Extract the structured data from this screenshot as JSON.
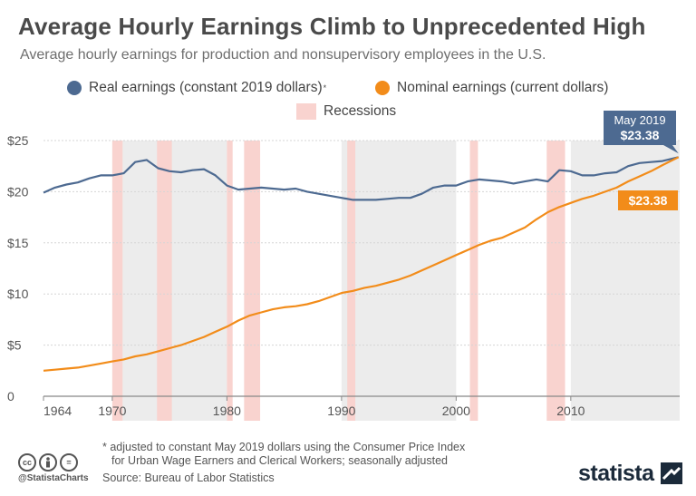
{
  "header": {
    "title": "Average Hourly Earnings Climb to Unprecedented High",
    "subtitle": "Average hourly earnings for production and nonsupervisory employees in the U.S."
  },
  "legend": {
    "real_label": "Real earnings (constant 2019 dollars)",
    "real_marker": "*",
    "nominal_label": "Nominal earnings (current dollars)",
    "recessions_label": "Recessions"
  },
  "footer": {
    "footnote_line1": "* adjusted to constant May 2019 dollars using the Consumer Price Index",
    "footnote_line2": "for Urban Wage Earners and Clerical Workers; seasonally adjusted",
    "source": "Source: Bureau of Labor Statistics",
    "handle": "@StatistaCharts",
    "brand": "statista"
  },
  "colors": {
    "real": "#4d6a91",
    "nominal": "#f28c1a",
    "recession": "#f9d3cf",
    "band": "#ececec",
    "grid": "#d5d5d5",
    "callout_real": "#4d6a91",
    "callout_nominal": "#f28c1a"
  },
  "icons": [
    "cc-icon",
    "attribution-icon",
    "no-derivatives-icon",
    "statista-logo-icon"
  ],
  "chart_data": {
    "type": "line",
    "ylim": [
      0,
      25
    ],
    "yticks": [
      0,
      5,
      10,
      15,
      20,
      25
    ],
    "ytick_labels": [
      "0",
      "$5",
      "$10",
      "$15",
      "$20",
      "$25"
    ],
    "xlim": [
      1964,
      2019.5
    ],
    "xticks": [
      1964,
      1970,
      1980,
      1990,
      2000,
      2010
    ],
    "xtick_labels": [
      "1964",
      "1970",
      "1980",
      "1990",
      "2000",
      "2010"
    ],
    "decade_bands": [
      [
        1970,
        1980
      ],
      [
        1990,
        2000
      ],
      [
        2010,
        2019.5
      ]
    ],
    "recessions": [
      [
        1970.0,
        1970.9
      ],
      [
        1973.9,
        1975.2
      ],
      [
        1980.0,
        1980.5
      ],
      [
        1981.5,
        1982.9
      ],
      [
        1990.5,
        1991.2
      ],
      [
        2001.2,
        2001.9
      ],
      [
        2007.9,
        2009.5
      ]
    ],
    "series": [
      {
        "name": "Real earnings (constant 2019 dollars)",
        "points": [
          [
            1964,
            19.9
          ],
          [
            1965,
            20.4
          ],
          [
            1966,
            20.7
          ],
          [
            1967,
            20.9
          ],
          [
            1968,
            21.3
          ],
          [
            1969,
            21.6
          ],
          [
            1970,
            21.6
          ],
          [
            1971,
            21.8
          ],
          [
            1972,
            22.9
          ],
          [
            1973,
            23.1
          ],
          [
            1974,
            22.3
          ],
          [
            1975,
            22.0
          ],
          [
            1976,
            21.9
          ],
          [
            1977,
            22.1
          ],
          [
            1978,
            22.2
          ],
          [
            1979,
            21.6
          ],
          [
            1980,
            20.6
          ],
          [
            1981,
            20.2
          ],
          [
            1982,
            20.3
          ],
          [
            1983,
            20.4
          ],
          [
            1984,
            20.3
          ],
          [
            1985,
            20.2
          ],
          [
            1986,
            20.3
          ],
          [
            1987,
            20.0
          ],
          [
            1988,
            19.8
          ],
          [
            1989,
            19.6
          ],
          [
            1990,
            19.4
          ],
          [
            1991,
            19.2
          ],
          [
            1992,
            19.2
          ],
          [
            1993,
            19.2
          ],
          [
            1994,
            19.3
          ],
          [
            1995,
            19.4
          ],
          [
            1996,
            19.4
          ],
          [
            1997,
            19.8
          ],
          [
            1998,
            20.4
          ],
          [
            1999,
            20.6
          ],
          [
            2000,
            20.6
          ],
          [
            2001,
            21.0
          ],
          [
            2002,
            21.2
          ],
          [
            2003,
            21.1
          ],
          [
            2004,
            21.0
          ],
          [
            2005,
            20.8
          ],
          [
            2006,
            21.0
          ],
          [
            2007,
            21.2
          ],
          [
            2008,
            21.0
          ],
          [
            2009,
            22.1
          ],
          [
            2010,
            22.0
          ],
          [
            2011,
            21.6
          ],
          [
            2012,
            21.6
          ],
          [
            2013,
            21.8
          ],
          [
            2014,
            21.9
          ],
          [
            2015,
            22.5
          ],
          [
            2016,
            22.8
          ],
          [
            2017,
            22.9
          ],
          [
            2018,
            23.0
          ],
          [
            2019.4,
            23.38
          ]
        ]
      },
      {
        "name": "Nominal earnings (current dollars)",
        "points": [
          [
            1964,
            2.5
          ],
          [
            1965,
            2.6
          ],
          [
            1966,
            2.7
          ],
          [
            1967,
            2.8
          ],
          [
            1968,
            3.0
          ],
          [
            1969,
            3.2
          ],
          [
            1970,
            3.4
          ],
          [
            1971,
            3.6
          ],
          [
            1972,
            3.9
          ],
          [
            1973,
            4.1
          ],
          [
            1974,
            4.4
          ],
          [
            1975,
            4.7
          ],
          [
            1976,
            5.0
          ],
          [
            1977,
            5.4
          ],
          [
            1978,
            5.8
          ],
          [
            1979,
            6.3
          ],
          [
            1980,
            6.8
          ],
          [
            1981,
            7.4
          ],
          [
            1982,
            7.9
          ],
          [
            1983,
            8.2
          ],
          [
            1984,
            8.5
          ],
          [
            1985,
            8.7
          ],
          [
            1986,
            8.8
          ],
          [
            1987,
            9.0
          ],
          [
            1988,
            9.3
          ],
          [
            1989,
            9.7
          ],
          [
            1990,
            10.1
          ],
          [
            1991,
            10.3
          ],
          [
            1992,
            10.6
          ],
          [
            1993,
            10.8
          ],
          [
            1994,
            11.1
          ],
          [
            1995,
            11.4
          ],
          [
            1996,
            11.8
          ],
          [
            1997,
            12.3
          ],
          [
            1998,
            12.8
          ],
          [
            1999,
            13.3
          ],
          [
            2000,
            13.8
          ],
          [
            2001,
            14.3
          ],
          [
            2002,
            14.8
          ],
          [
            2003,
            15.2
          ],
          [
            2004,
            15.5
          ],
          [
            2005,
            16.0
          ],
          [
            2006,
            16.5
          ],
          [
            2007,
            17.3
          ],
          [
            2008,
            18.0
          ],
          [
            2009,
            18.5
          ],
          [
            2010,
            18.9
          ],
          [
            2011,
            19.3
          ],
          [
            2012,
            19.6
          ],
          [
            2013,
            20.0
          ],
          [
            2014,
            20.4
          ],
          [
            2015,
            21.0
          ],
          [
            2016,
            21.5
          ],
          [
            2017,
            22.0
          ],
          [
            2018,
            22.6
          ],
          [
            2019.4,
            23.38
          ]
        ]
      }
    ],
    "callouts": {
      "real_date": "May 2019",
      "real_value": "$23.38",
      "nominal_value": "$23.38"
    }
  }
}
